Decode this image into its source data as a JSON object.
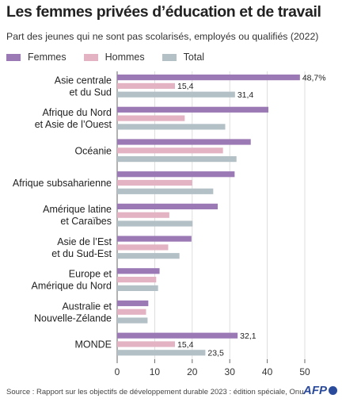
{
  "title": "Les femmes privées d’éducation et de travail",
  "subtitle": "Part des jeunes qui ne sont pas scolarisés, employés ou qualifiés (2022)",
  "legend": [
    {
      "label": "Femmes",
      "color": "#9b79b5"
    },
    {
      "label": "Hommes",
      "color": "#e3b3c4"
    },
    {
      "label": "Total",
      "color": "#b3c1c7"
    }
  ],
  "chart_data": {
    "type": "bar",
    "orientation": "horizontal",
    "xlim": [
      0,
      50
    ],
    "xticks": [
      "0",
      "10",
      "20",
      "30",
      "40",
      "50"
    ],
    "categories": [
      [
        "Asie centrale",
        "et du Sud"
      ],
      [
        "Afrique du Nord",
        "et Asie de l’Ouest"
      ],
      [
        "Océanie"
      ],
      [
        "Afrique subsaharienne"
      ],
      [
        "Amérique latine",
        "et Caraïbes"
      ],
      [
        "Asie de l’Est",
        "et du Sud-Est"
      ],
      [
        "Europe et",
        "Amérique du Nord"
      ],
      [
        "Australie et",
        "Nouvelle-Zélande"
      ],
      [
        "MONDE"
      ]
    ],
    "series": [
      {
        "name": "Femmes",
        "values": [
          48.7,
          40.3,
          35.6,
          31.3,
          26.8,
          19.8,
          11.3,
          8.3,
          32.1
        ]
      },
      {
        "name": "Hommes",
        "values": [
          15.4,
          18.0,
          28.2,
          20.0,
          13.9,
          13.6,
          10.4,
          7.7,
          15.4
        ]
      },
      {
        "name": "Total",
        "values": [
          31.4,
          28.8,
          31.8,
          25.6,
          20.1,
          16.6,
          10.9,
          8.1,
          23.5
        ]
      }
    ],
    "data_labels": [
      {
        "category": 0,
        "series": 0,
        "text": "48,7%"
      },
      {
        "category": 0,
        "series": 1,
        "text": "15,4"
      },
      {
        "category": 0,
        "series": 2,
        "text": "31,4"
      },
      {
        "category": 8,
        "series": 0,
        "text": "32,1"
      },
      {
        "category": 8,
        "series": 1,
        "text": "15,4"
      },
      {
        "category": 8,
        "series": 2,
        "text": "23,5"
      }
    ]
  },
  "source": "Source : Rapport sur les objectifs de développement durable 2023 : édition spéciale, Onu",
  "logo": "AFP"
}
